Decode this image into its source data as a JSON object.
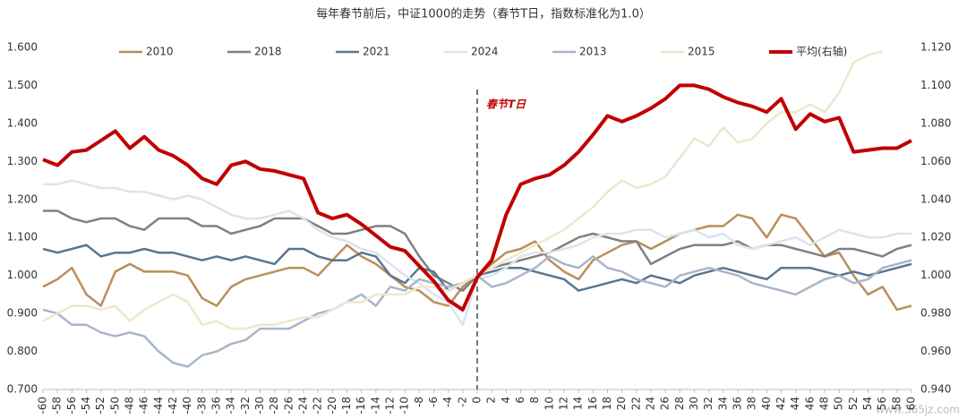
{
  "chart_data": {
    "type": "line",
    "title": "每年春节前后，中证1000的走势（春节T日，指数标准化为1.0）",
    "annotation": {
      "text": "春节T日",
      "x": 0
    },
    "watermark": "www.365jz.com",
    "grid": false,
    "legend": "top",
    "x": [
      -60,
      -58,
      -56,
      -54,
      -52,
      -50,
      -48,
      -46,
      -44,
      -42,
      -40,
      -38,
      -36,
      -34,
      -32,
      -30,
      -28,
      -26,
      -24,
      -22,
      -20,
      -18,
      -16,
      -14,
      -12,
      -10,
      -8,
      -6,
      -4,
      -2,
      0,
      2,
      4,
      6,
      8,
      10,
      12,
      14,
      16,
      18,
      20,
      22,
      24,
      26,
      28,
      30,
      32,
      34,
      36,
      38,
      40,
      42,
      44,
      46,
      48,
      50,
      52,
      54,
      56,
      58,
      60
    ],
    "xlim": [
      -60,
      60
    ],
    "xticks": [
      -60,
      -58,
      -56,
      -54,
      -52,
      -50,
      -48,
      -46,
      -44,
      -42,
      -40,
      -38,
      -36,
      -34,
      -32,
      -30,
      -28,
      -26,
      -24,
      -22,
      -20,
      -18,
      -16,
      -14,
      -12,
      -10,
      -8,
      -6,
      -4,
      -2,
      0,
      2,
      4,
      6,
      8,
      10,
      12,
      14,
      16,
      18,
      20,
      22,
      24,
      26,
      28,
      30,
      32,
      34,
      36,
      38,
      40,
      42,
      44,
      46,
      48,
      50,
      52,
      54,
      56,
      58,
      60
    ],
    "ylim": [
      0.7,
      1.6
    ],
    "yticks": [
      {
        "value": 0.7,
        "label": "0.700"
      },
      {
        "value": 0.8,
        "label": "0.800"
      },
      {
        "value": 0.9,
        "label": "0.900"
      },
      {
        "value": 1.0,
        "label": "1.000"
      },
      {
        "value": 1.1,
        "label": "1.100"
      },
      {
        "value": 1.2,
        "label": "1.200"
      },
      {
        "value": 1.3,
        "label": "1.300"
      },
      {
        "value": 1.4,
        "label": "1.400"
      },
      {
        "value": 1.5,
        "label": "1.500"
      },
      {
        "value": 1.6,
        "label": "1.600"
      }
    ],
    "y2lim": [
      0.94,
      1.12
    ],
    "y2ticks": [
      {
        "value": 0.94,
        "label": "0.940"
      },
      {
        "value": 0.96,
        "label": "0.960"
      },
      {
        "value": 0.98,
        "label": "0.980"
      },
      {
        "value": 1.0,
        "label": "1.000"
      },
      {
        "value": 1.02,
        "label": "1.020"
      },
      {
        "value": 1.04,
        "label": "1.040"
      },
      {
        "value": 1.06,
        "label": "1.060"
      },
      {
        "value": 1.08,
        "label": "1.080"
      },
      {
        "value": 1.1,
        "label": "1.100"
      },
      {
        "value": 1.12,
        "label": "1.120"
      }
    ],
    "series": [
      {
        "name": "2010",
        "color": "#b8905a",
        "width": 2.5,
        "values": [
          0.97,
          0.99,
          1.02,
          0.95,
          0.92,
          1.01,
          1.03,
          1.01,
          1.01,
          1.01,
          1.0,
          0.94,
          0.92,
          0.97,
          0.99,
          1.0,
          1.01,
          1.02,
          1.02,
          1.0,
          1.04,
          1.08,
          1.05,
          1.03,
          1.0,
          0.97,
          0.96,
          0.93,
          0.92,
          0.97,
          1.0,
          1.03,
          1.06,
          1.07,
          1.09,
          1.04,
          1.01,
          0.99,
          1.04,
          1.06,
          1.08,
          1.09,
          1.07,
          1.09,
          1.11,
          1.12,
          1.13,
          1.13,
          1.16,
          1.15,
          1.1,
          1.16,
          1.15,
          1.1,
          1.05,
          1.06,
          1.0,
          0.95,
          0.97,
          0.91,
          0.92
        ]
      },
      {
        "name": "2018",
        "color": "#808080",
        "width": 2.5,
        "values": [
          1.17,
          1.17,
          1.15,
          1.14,
          1.15,
          1.15,
          1.13,
          1.12,
          1.15,
          1.15,
          1.15,
          1.13,
          1.13,
          1.11,
          1.12,
          1.13,
          1.15,
          1.15,
          1.15,
          1.13,
          1.11,
          1.11,
          1.12,
          1.13,
          1.13,
          1.11,
          1.05,
          1.0,
          0.98,
          0.96,
          1.0,
          1.02,
          1.03,
          1.04,
          1.05,
          1.06,
          1.08,
          1.1,
          1.11,
          1.1,
          1.09,
          1.09,
          1.03,
          1.05,
          1.07,
          1.08,
          1.08,
          1.08,
          1.09,
          1.07,
          1.08,
          1.08,
          1.07,
          1.06,
          1.05,
          1.07,
          1.07,
          1.06,
          1.05,
          1.07,
          1.08
        ]
      },
      {
        "name": "2021",
        "color": "#5a7590",
        "width": 2.5,
        "values": [
          1.07,
          1.06,
          1.07,
          1.08,
          1.05,
          1.06,
          1.06,
          1.07,
          1.06,
          1.06,
          1.05,
          1.04,
          1.05,
          1.04,
          1.05,
          1.04,
          1.03,
          1.07,
          1.07,
          1.05,
          1.04,
          1.04,
          1.06,
          1.05,
          1.0,
          0.98,
          1.02,
          1.01,
          0.96,
          0.98,
          1.0,
          1.01,
          1.02,
          1.02,
          1.01,
          1.0,
          0.99,
          0.96,
          0.97,
          0.98,
          0.99,
          0.98,
          1.0,
          0.99,
          0.98,
          1.0,
          1.01,
          1.02,
          1.01,
          1.0,
          0.99,
          1.02,
          1.02,
          1.02,
          1.01,
          1.0,
          1.01,
          1.0,
          1.01,
          1.02,
          1.03
        ]
      },
      {
        "name": "2024",
        "color": "#dce3ef",
        "width": 2.5,
        "values": [
          1.24,
          1.24,
          1.25,
          1.24,
          1.23,
          1.23,
          1.22,
          1.22,
          1.21,
          1.2,
          1.21,
          1.2,
          1.18,
          1.16,
          1.15,
          1.15,
          1.16,
          1.17,
          1.15,
          1.12,
          1.1,
          1.09,
          1.07,
          1.06,
          1.03,
          1.0,
          0.98,
          0.95,
          0.93,
          0.87,
          0.99,
          1.0,
          1.02,
          1.05,
          1.06,
          1.06,
          1.07,
          1.08,
          1.1,
          1.11,
          1.11,
          1.12,
          1.12,
          1.1,
          1.11,
          1.12,
          1.1,
          1.11,
          1.08,
          1.07,
          1.08,
          1.09,
          1.1,
          1.08,
          1.1,
          1.12,
          1.11,
          1.1,
          1.1,
          1.11,
          1.11
        ]
      },
      {
        "name": "2013",
        "color": "#a8b5c8",
        "width": 2.5,
        "values": [
          0.91,
          0.9,
          0.87,
          0.87,
          0.85,
          0.84,
          0.85,
          0.84,
          0.8,
          0.77,
          0.76,
          0.79,
          0.8,
          0.82,
          0.83,
          0.86,
          0.86,
          0.86,
          0.88,
          0.9,
          0.91,
          0.93,
          0.95,
          0.92,
          0.97,
          0.96,
          0.99,
          0.98,
          0.97,
          0.98,
          1.0,
          0.97,
          0.98,
          1.0,
          1.02,
          1.05,
          1.03,
          1.02,
          1.05,
          1.02,
          1.01,
          0.99,
          0.98,
          0.97,
          1.0,
          1.01,
          1.02,
          1.01,
          1.0,
          0.98,
          0.97,
          0.96,
          0.95,
          0.97,
          0.99,
          1.0,
          0.98,
          0.99,
          1.02,
          1.03,
          1.04
        ]
      },
      {
        "name": "2015",
        "color": "#efe6cf",
        "width": 2.5,
        "values": [
          0.88,
          0.9,
          0.92,
          0.92,
          0.91,
          0.92,
          0.88,
          0.91,
          0.93,
          0.95,
          0.93,
          0.87,
          0.88,
          0.86,
          0.86,
          0.87,
          0.87,
          0.88,
          0.89,
          0.89,
          0.91,
          0.93,
          0.93,
          0.95,
          0.95,
          0.95,
          0.97,
          0.97,
          0.96,
          0.98,
          1.0,
          1.02,
          1.04,
          1.06,
          1.08,
          1.1,
          1.12,
          1.15,
          1.18,
          1.22,
          1.25,
          1.23,
          1.24,
          1.26,
          1.31,
          1.36,
          1.34,
          1.39,
          1.35,
          1.36,
          1.4,
          1.43,
          1.43,
          1.45,
          1.43,
          1.48,
          1.56,
          1.58,
          1.59,
          null,
          null
        ]
      },
      {
        "name": "平均(右轴)",
        "color": "#c00000",
        "width": 4,
        "axis": "y2",
        "values": [
          1.061,
          1.058,
          1.065,
          1.066,
          1.071,
          1.076,
          1.067,
          1.073,
          1.066,
          1.063,
          1.058,
          1.051,
          1.048,
          1.058,
          1.06,
          1.056,
          1.055,
          1.053,
          1.051,
          1.033,
          1.03,
          1.032,
          1.027,
          1.021,
          1.015,
          1.013,
          1.005,
          0.997,
          0.987,
          0.982,
          0.999,
          1.008,
          1.032,
          1.048,
          1.051,
          1.053,
          1.058,
          1.065,
          1.074,
          1.084,
          1.081,
          1.084,
          1.088,
          1.093,
          1.1,
          1.1,
          1.098,
          1.094,
          1.091,
          1.089,
          1.086,
          1.093,
          1.077,
          1.085,
          1.081,
          1.083,
          1.065,
          1.066,
          1.067,
          1.067,
          1.071
        ]
      }
    ]
  }
}
